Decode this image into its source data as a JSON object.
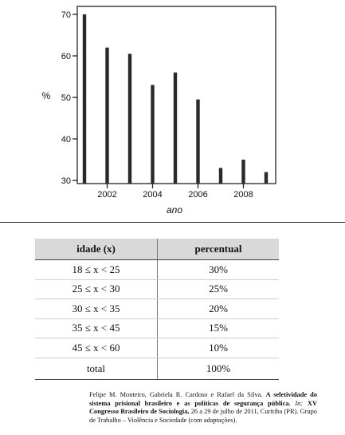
{
  "chart_data": {
    "type": "bar",
    "x": [
      2001,
      2002,
      2003,
      2004,
      2005,
      2006,
      2007,
      2008,
      2009
    ],
    "values": [
      70,
      62,
      60.5,
      53,
      56,
      49.5,
      33,
      35,
      32
    ],
    "xticks": [
      "2002",
      "2004",
      "2006",
      "2008"
    ],
    "yticks": [
      "30",
      "40",
      "50",
      "60",
      "70"
    ],
    "xlabel": "ano",
    "ylabel": "%",
    "ylim": [
      30,
      72
    ],
    "grid": false,
    "bar_color": "#2a2a2a"
  },
  "table": {
    "headers": [
      "idade (x)",
      "percentual"
    ],
    "rows": [
      [
        "18 ≤ x < 25",
        "30%"
      ],
      [
        "25 ≤ x < 30",
        "25%"
      ],
      [
        "30 ≤ x < 35",
        "20%"
      ],
      [
        "35 ≤ x < 45",
        "15%"
      ],
      [
        "45 ≤ x < 60",
        "10%"
      ]
    ],
    "total": [
      "total",
      "100%"
    ]
  },
  "source": {
    "authors": "Felipe M. Monteiro, Gabriela R. Cardoso e Rafael da Silva.",
    "title": "A seletividade do sistema prisional brasileiro e as políticas de segurança pública.",
    "in": "In:",
    "event": "XV Congresso Brasileiro de Sociologia,",
    "details": "26 a 29 de julho de 2011, Curitiba (PR). Grupo de Trabalho – Violência e Sociedade (com adaptações)."
  }
}
